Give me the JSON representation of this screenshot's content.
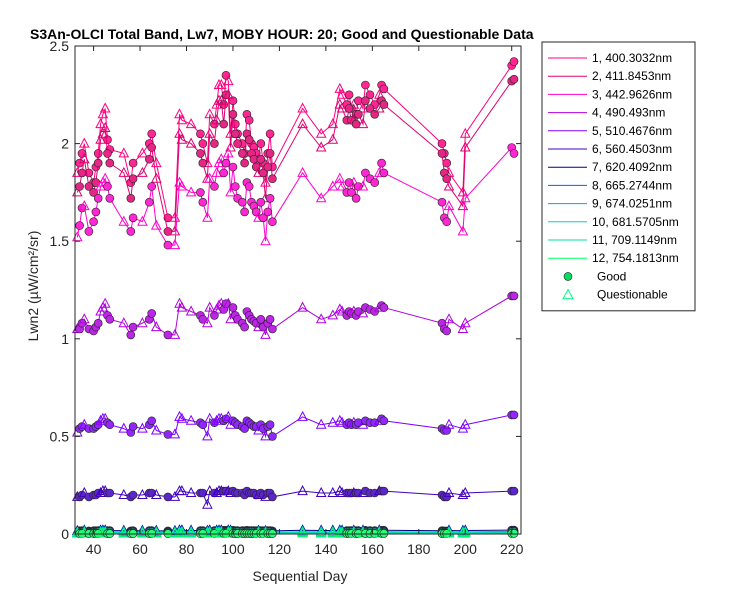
{
  "chart_data": {
    "type": "line",
    "title": "S3An-OLCI Total Band, Lw7, MOBY HOUR: 20;  Good and Questionable Data",
    "xlabel": "Sequential Day",
    "ylabel": "Lwn2 (µW/cm²/sr)",
    "xlim": [
      32,
      224
    ],
    "ylim": [
      0,
      2.5
    ],
    "xticks": [
      40,
      60,
      80,
      100,
      120,
      140,
      160,
      180,
      200,
      220
    ],
    "yticks": [
      0,
      0.5,
      1,
      1.5,
      2,
      2.5
    ],
    "x_tick_labels": [
      "40",
      "60",
      "80",
      "100",
      "120",
      "140",
      "160",
      "180",
      "200",
      "220"
    ],
    "y_tick_labels": [
      "0",
      "0.5",
      "1",
      "1.5",
      "2",
      "2.5"
    ],
    "legend_position": "outside-right",
    "good_days": [
      34,
      35,
      38,
      40,
      41,
      42,
      46,
      47,
      56,
      57,
      64,
      65,
      72,
      86,
      87,
      92,
      96,
      97,
      100,
      101,
      102,
      104,
      105,
      106,
      107,
      108,
      109,
      110,
      112,
      113,
      115,
      116,
      117,
      149,
      150,
      151,
      153,
      154,
      157,
      159,
      161,
      164,
      165,
      190,
      191,
      192,
      220,
      221
    ],
    "questionable_days": [
      33,
      36,
      43,
      44,
      45,
      53,
      61,
      67,
      75,
      77,
      78,
      82,
      89,
      90,
      93,
      94,
      95,
      98,
      99,
      111,
      114,
      130,
      138,
      143,
      146,
      147,
      152,
      156,
      163,
      193,
      199,
      200
    ],
    "series": [
      {
        "name": "1, 400.3032nm",
        "color": "#FF0080",
        "good": [
          1.9,
          1.95,
          1.85,
          1.8,
          1.88,
          1.95,
          2.02,
          1.97,
          1.8,
          1.9,
          2.0,
          2.05,
          1.62,
          2.05,
          2.0,
          2.1,
          2.2,
          2.35,
          2.22,
          2.1,
          2.05,
          2.0,
          1.95,
          2.15,
          2.12,
          2.0,
          1.98,
          1.95,
          2.0,
          1.9,
          1.95,
          2.05,
          1.88,
          2.2,
          2.25,
          2.18,
          2.15,
          2.22,
          2.3,
          2.25,
          2.2,
          2.3,
          2.28,
          2.0,
          1.95,
          1.9,
          2.4,
          2.42
        ],
        "questionable": [
          1.85,
          2.0,
          2.1,
          2.15,
          2.18,
          1.95,
          1.95,
          1.9,
          1.62,
          2.15,
          2.12,
          2.1,
          1.9,
          2.15,
          2.2,
          2.3,
          2.3,
          2.32,
          2.05,
          1.92,
          1.8,
          2.18,
          2.05,
          2.1,
          2.28,
          2.25,
          2.2,
          2.18,
          2.25,
          1.85,
          1.75,
          2.05
        ]
      },
      {
        "name": "2, 411.8453nm",
        "color": "#E00070",
        "good": [
          1.78,
          1.85,
          1.78,
          1.75,
          1.8,
          1.9,
          1.95,
          1.9,
          1.72,
          1.82,
          1.92,
          1.98,
          1.55,
          1.95,
          1.9,
          2.0,
          2.1,
          2.25,
          2.15,
          2.05,
          2.0,
          1.95,
          1.9,
          2.05,
          2.02,
          1.95,
          1.92,
          1.88,
          1.92,
          1.85,
          1.88,
          1.95,
          1.82,
          2.12,
          2.18,
          2.12,
          2.1,
          2.15,
          2.22,
          2.18,
          2.15,
          2.22,
          2.2,
          1.95,
          1.85,
          1.82,
          2.32,
          2.33
        ],
        "questionable": [
          1.75,
          1.92,
          2.02,
          2.05,
          2.08,
          1.85,
          1.85,
          1.82,
          1.55,
          2.05,
          2.02,
          2.0,
          1.82,
          2.05,
          2.12,
          2.22,
          2.22,
          2.25,
          1.98,
          1.85,
          1.72,
          2.1,
          1.98,
          2.02,
          2.2,
          2.18,
          2.12,
          2.1,
          2.18,
          1.78,
          1.68,
          1.98
        ]
      },
      {
        "name": "3, 442.9626nm",
        "color": "#FF00CC",
        "good": [
          1.58,
          1.67,
          1.55,
          1.6,
          1.65,
          1.72,
          1.78,
          1.72,
          1.55,
          1.62,
          1.7,
          1.78,
          1.48,
          1.75,
          1.7,
          1.78,
          1.85,
          1.9,
          1.88,
          1.78,
          1.72,
          1.7,
          1.65,
          1.8,
          1.78,
          1.7,
          1.68,
          1.65,
          1.7,
          1.62,
          1.65,
          1.72,
          1.6,
          1.75,
          1.8,
          1.75,
          1.72,
          1.78,
          1.85,
          1.82,
          1.8,
          1.9,
          1.85,
          1.7,
          1.62,
          1.6,
          1.98,
          1.95
        ],
        "questionable": [
          1.52,
          1.68,
          1.78,
          1.8,
          1.82,
          1.6,
          1.6,
          1.58,
          1.48,
          1.8,
          1.78,
          1.75,
          1.62,
          1.82,
          1.85,
          1.9,
          1.92,
          1.95,
          1.75,
          1.62,
          1.5,
          1.85,
          1.72,
          1.78,
          1.82,
          1.78,
          1.8,
          1.78,
          1.85,
          1.68,
          1.55,
          1.72
        ]
      },
      {
        "name": "4,  490.493nm",
        "color": "#B000E0",
        "good": [
          1.05,
          1.08,
          1.05,
          1.04,
          1.06,
          1.08,
          1.12,
          1.1,
          1.02,
          1.06,
          1.1,
          1.13,
          1.02,
          1.12,
          1.1,
          1.12,
          1.15,
          1.18,
          1.16,
          1.12,
          1.1,
          1.08,
          1.06,
          1.14,
          1.12,
          1.1,
          1.09,
          1.08,
          1.1,
          1.06,
          1.08,
          1.1,
          1.05,
          1.12,
          1.14,
          1.13,
          1.12,
          1.14,
          1.16,
          1.15,
          1.14,
          1.17,
          1.16,
          1.08,
          1.05,
          1.04,
          1.22,
          1.22
        ],
        "questionable": [
          1.05,
          1.1,
          1.14,
          1.16,
          1.18,
          1.08,
          1.08,
          1.06,
          1.02,
          1.18,
          1.16,
          1.14,
          1.08,
          1.16,
          1.15,
          1.17,
          1.18,
          1.18,
          1.1,
          1.06,
          1.02,
          1.16,
          1.1,
          1.12,
          1.15,
          1.14,
          1.14,
          1.13,
          1.16,
          1.1,
          1.05,
          1.08
        ]
      },
      {
        "name": "5, 510.4676nm",
        "color": "#8000FF",
        "good": [
          0.54,
          0.55,
          0.54,
          0.54,
          0.55,
          0.56,
          0.57,
          0.56,
          0.52,
          0.55,
          0.56,
          0.58,
          0.51,
          0.57,
          0.56,
          0.57,
          0.58,
          0.59,
          0.58,
          0.57,
          0.56,
          0.55,
          0.54,
          0.58,
          0.57,
          0.56,
          0.55,
          0.55,
          0.56,
          0.54,
          0.55,
          0.56,
          0.5,
          0.56,
          0.57,
          0.56,
          0.56,
          0.57,
          0.58,
          0.57,
          0.57,
          0.59,
          0.58,
          0.54,
          0.53,
          0.53,
          0.61,
          0.61
        ],
        "questionable": [
          0.52,
          0.56,
          0.58,
          0.59,
          0.59,
          0.54,
          0.54,
          0.53,
          0.51,
          0.6,
          0.59,
          0.58,
          0.5,
          0.59,
          0.58,
          0.59,
          0.59,
          0.6,
          0.56,
          0.53,
          0.5,
          0.6,
          0.56,
          0.57,
          0.58,
          0.57,
          0.57,
          0.56,
          0.58,
          0.56,
          0.54,
          0.56
        ]
      },
      {
        "name": "6, 560.4503nm",
        "color": "#4000C0",
        "good": [
          0.19,
          0.2,
          0.19,
          0.2,
          0.2,
          0.21,
          0.21,
          0.21,
          0.19,
          0.2,
          0.21,
          0.21,
          0.19,
          0.21,
          0.21,
          0.21,
          0.22,
          0.22,
          0.22,
          0.21,
          0.21,
          0.21,
          0.2,
          0.22,
          0.21,
          0.21,
          0.21,
          0.2,
          0.21,
          0.2,
          0.21,
          0.21,
          0.19,
          0.21,
          0.21,
          0.21,
          0.21,
          0.21,
          0.22,
          0.21,
          0.21,
          0.22,
          0.22,
          0.2,
          0.19,
          0.19,
          0.22,
          0.22
        ],
        "questionable": [
          0.19,
          0.21,
          0.21,
          0.22,
          0.22,
          0.2,
          0.2,
          0.2,
          0.19,
          0.22,
          0.22,
          0.21,
          0.15,
          0.22,
          0.21,
          0.22,
          0.22,
          0.22,
          0.21,
          0.2,
          0.19,
          0.22,
          0.21,
          0.21,
          0.22,
          0.21,
          0.21,
          0.21,
          0.22,
          0.21,
          0.2,
          0.21
        ]
      },
      {
        "name": "7, 620.4092nm",
        "color": "#000080",
        "good": [
          0.017,
          0.017,
          0.016,
          0.017,
          0.017,
          0.018,
          0.018,
          0.018,
          0.016,
          0.017,
          0.018,
          0.018,
          0.016,
          0.018,
          0.018,
          0.018,
          0.019,
          0.019,
          0.019,
          0.018,
          0.018,
          0.018,
          0.017,
          0.019,
          0.018,
          0.018,
          0.018,
          0.017,
          0.018,
          0.017,
          0.018,
          0.018,
          0.016,
          0.018,
          0.018,
          0.018,
          0.018,
          0.018,
          0.019,
          0.018,
          0.018,
          0.019,
          0.019,
          0.017,
          0.016,
          0.016,
          0.02,
          0.02
        ],
        "questionable": [
          0.016,
          0.018,
          0.018,
          0.019,
          0.019,
          0.017,
          0.017,
          0.017,
          0.016,
          0.019,
          0.019,
          0.018,
          0.017,
          0.019,
          0.018,
          0.019,
          0.019,
          0.019,
          0.018,
          0.017,
          0.016,
          0.019,
          0.018,
          0.018,
          0.019,
          0.018,
          0.018,
          0.018,
          0.019,
          0.018,
          0.017,
          0.018
        ]
      },
      {
        "name": "8, 665.2744nm",
        "color": "#0060FF",
        "good": [
          0.01,
          0.01,
          0.009,
          0.01,
          0.01,
          0.011,
          0.011,
          0.011,
          0.009,
          0.01,
          0.011,
          0.011,
          0.009,
          0.011,
          0.011,
          0.011,
          0.012,
          0.012,
          0.012,
          0.011,
          0.011,
          0.011,
          0.01,
          0.012,
          0.011,
          0.011,
          0.011,
          0.01,
          0.011,
          0.01,
          0.011,
          0.011,
          0.009,
          0.011,
          0.011,
          0.011,
          0.011,
          0.011,
          0.012,
          0.011,
          0.011,
          0.012,
          0.012,
          0.01,
          0.009,
          0.009,
          0.013,
          0.013
        ],
        "questionable": [
          0.009,
          0.011,
          0.011,
          0.012,
          0.012,
          0.01,
          0.01,
          0.01,
          0.009,
          0.012,
          0.012,
          0.011,
          0.01,
          0.012,
          0.011,
          0.012,
          0.012,
          0.012,
          0.011,
          0.01,
          0.009,
          0.012,
          0.011,
          0.011,
          0.012,
          0.011,
          0.011,
          0.011,
          0.012,
          0.011,
          0.01,
          0.011
        ]
      },
      {
        "name": "9, 674.0251nm",
        "color": "#00A0FF",
        "good": [
          0.008,
          0.008,
          0.007,
          0.008,
          0.008,
          0.009,
          0.009,
          0.009,
          0.007,
          0.008,
          0.009,
          0.009,
          0.007,
          0.009,
          0.009,
          0.009,
          0.01,
          0.01,
          0.01,
          0.009,
          0.009,
          0.009,
          0.008,
          0.01,
          0.009,
          0.009,
          0.009,
          0.008,
          0.009,
          0.008,
          0.009,
          0.009,
          0.007,
          0.009,
          0.009,
          0.009,
          0.009,
          0.009,
          0.01,
          0.009,
          0.009,
          0.01,
          0.01,
          0.008,
          0.007,
          0.007,
          0.011,
          0.011
        ],
        "questionable": [
          0.007,
          0.009,
          0.009,
          0.01,
          0.01,
          0.008,
          0.008,
          0.008,
          0.007,
          0.01,
          0.01,
          0.009,
          0.008,
          0.01,
          0.009,
          0.01,
          0.01,
          0.01,
          0.009,
          0.008,
          0.007,
          0.01,
          0.009,
          0.009,
          0.01,
          0.009,
          0.009,
          0.009,
          0.01,
          0.009,
          0.008,
          0.009
        ]
      },
      {
        "name": "10, 681.5705nm",
        "color": "#00D0D0",
        "good": [
          0.009,
          0.009,
          0.008,
          0.009,
          0.009,
          0.01,
          0.01,
          0.01,
          0.008,
          0.009,
          0.01,
          0.01,
          0.008,
          0.01,
          0.01,
          0.01,
          0.011,
          0.011,
          0.011,
          0.01,
          0.01,
          0.01,
          0.009,
          0.011,
          0.01,
          0.01,
          0.01,
          0.009,
          0.01,
          0.009,
          0.01,
          0.01,
          0.008,
          0.01,
          0.01,
          0.01,
          0.01,
          0.01,
          0.011,
          0.01,
          0.01,
          0.011,
          0.011,
          0.009,
          0.008,
          0.008,
          0.012,
          0.012
        ],
        "questionable": [
          0.008,
          0.01,
          0.01,
          0.011,
          0.011,
          0.009,
          0.009,
          0.009,
          0.008,
          0.011,
          0.011,
          0.01,
          0.009,
          0.011,
          0.01,
          0.011,
          0.011,
          0.011,
          0.01,
          0.009,
          0.008,
          0.011,
          0.01,
          0.01,
          0.011,
          0.01,
          0.01,
          0.01,
          0.011,
          0.01,
          0.009,
          0.01
        ]
      },
      {
        "name": "11, 709.1149nm",
        "color": "#00E0A0",
        "good": [
          0.005,
          0.005,
          0.004,
          0.005,
          0.005,
          0.005,
          0.005,
          0.005,
          0.004,
          0.005,
          0.005,
          0.005,
          0.004,
          0.005,
          0.005,
          0.005,
          0.006,
          0.006,
          0.006,
          0.005,
          0.005,
          0.005,
          0.005,
          0.006,
          0.005,
          0.005,
          0.005,
          0.005,
          0.005,
          0.005,
          0.005,
          0.005,
          0.004,
          0.005,
          0.005,
          0.005,
          0.005,
          0.005,
          0.006,
          0.005,
          0.005,
          0.006,
          0.006,
          0.005,
          0.004,
          0.004,
          0.006,
          0.006
        ],
        "questionable": [
          0.004,
          0.005,
          0.005,
          0.006,
          0.006,
          0.005,
          0.005,
          0.005,
          0.004,
          0.006,
          0.006,
          0.005,
          0.005,
          0.006,
          0.005,
          0.006,
          0.006,
          0.006,
          0.005,
          0.005,
          0.004,
          0.006,
          0.005,
          0.005,
          0.006,
          0.005,
          0.005,
          0.005,
          0.006,
          0.005,
          0.005,
          0.005
        ]
      },
      {
        "name": "12, 754.1813nm",
        "color": "#00FF60",
        "good": [
          0.002,
          0.002,
          0.002,
          0.002,
          0.002,
          0.002,
          0.002,
          0.002,
          0.002,
          0.002,
          0.002,
          0.002,
          0.002,
          0.002,
          0.002,
          0.002,
          0.003,
          0.003,
          0.003,
          0.002,
          0.002,
          0.002,
          0.002,
          0.003,
          0.002,
          0.002,
          0.002,
          0.002,
          0.002,
          0.002,
          0.002,
          0.002,
          0.002,
          0.002,
          0.002,
          0.002,
          0.002,
          0.002,
          0.003,
          0.002,
          0.002,
          0.003,
          0.003,
          0.002,
          0.002,
          0.002,
          0.003,
          0.003
        ],
        "questionable": [
          0.002,
          0.002,
          0.002,
          0.003,
          0.003,
          0.002,
          0.002,
          0.002,
          0.002,
          0.003,
          0.003,
          0.002,
          0.002,
          0.003,
          0.002,
          0.003,
          0.003,
          0.003,
          0.002,
          0.002,
          0.002,
          0.003,
          0.002,
          0.002,
          0.003,
          0.002,
          0.002,
          0.002,
          0.003,
          0.002,
          0.002,
          0.002
        ]
      }
    ],
    "legend_markers": [
      {
        "label": "Good",
        "marker": "circle",
        "color": "#00E060"
      },
      {
        "label": "Questionable",
        "marker": "triangle",
        "color": "#00FF80"
      }
    ]
  }
}
